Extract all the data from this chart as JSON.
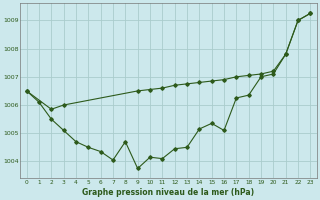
{
  "title": "Graphe pression niveau de la mer (hPa)",
  "background_color": "#cce8ec",
  "grid_color": "#aacccc",
  "line_color": "#2d5a1b",
  "xlim": [
    -0.5,
    23.5
  ],
  "ylim": [
    1003.4,
    1009.6
  ],
  "yticks": [
    1004,
    1005,
    1006,
    1007,
    1008,
    1009
  ],
  "xticks": [
    0,
    1,
    2,
    3,
    4,
    5,
    6,
    7,
    8,
    9,
    10,
    11,
    12,
    13,
    14,
    15,
    16,
    17,
    18,
    19,
    20,
    21,
    22,
    23
  ],
  "series1_x": [
    0,
    1,
    2,
    3,
    4,
    5,
    6,
    7,
    8,
    9,
    10,
    11,
    12,
    13,
    14,
    15,
    16,
    17,
    18,
    19,
    20,
    21,
    22,
    23
  ],
  "series1_y": [
    1006.5,
    1006.1,
    1005.5,
    1005.1,
    1004.7,
    1004.5,
    1004.35,
    1004.05,
    1004.7,
    1003.75,
    1004.15,
    1004.1,
    1004.45,
    1004.5,
    1005.15,
    1005.35,
    1005.1,
    1006.25,
    1006.35,
    1007.0,
    1007.1,
    1007.8,
    1009.0,
    1009.25
  ],
  "series2_x": [
    0,
    2,
    3,
    9,
    10,
    11,
    12,
    13,
    14,
    15,
    16,
    17,
    18,
    19,
    20,
    21,
    22,
    23
  ],
  "series2_y": [
    1006.5,
    1005.85,
    1006.0,
    1006.5,
    1006.55,
    1006.6,
    1006.7,
    1006.75,
    1006.8,
    1006.85,
    1006.9,
    1007.0,
    1007.05,
    1007.1,
    1007.2,
    1007.8,
    1009.0,
    1009.25
  ]
}
